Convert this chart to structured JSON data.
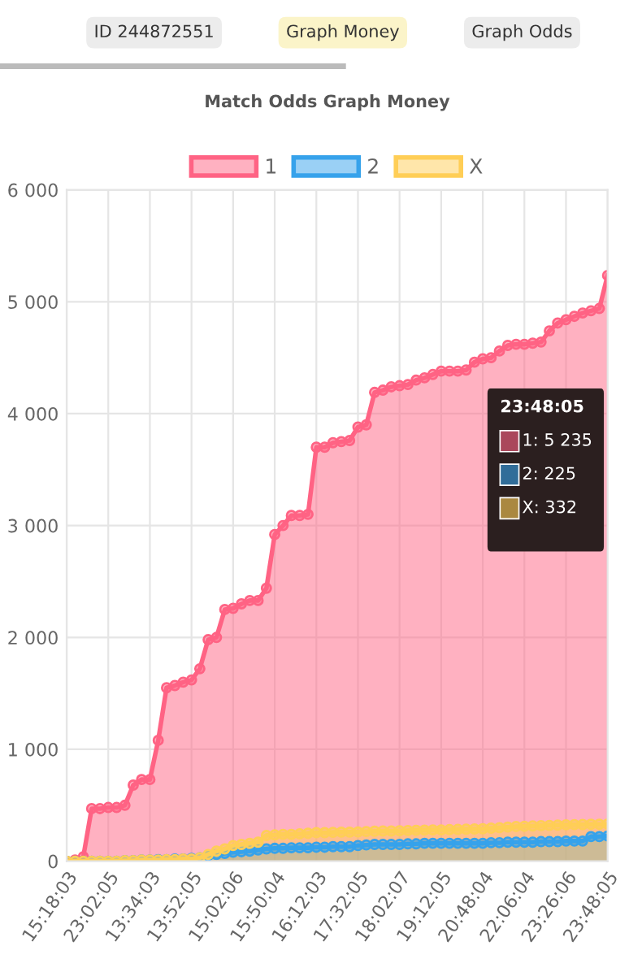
{
  "chart_data": {
    "type": "area",
    "title": "Match Odds Graph Money",
    "categories": [
      "15:18:03",
      null,
      null,
      null,
      null,
      "23:02:05",
      null,
      null,
      null,
      null,
      "13:34:03",
      null,
      null,
      null,
      null,
      "13:52:05",
      null,
      null,
      null,
      null,
      "15:02:06",
      null,
      null,
      null,
      null,
      "15:50:04",
      null,
      null,
      null,
      null,
      "16:12:03",
      null,
      null,
      null,
      null,
      "17:32:05",
      null,
      null,
      null,
      null,
      "18:02:07",
      null,
      null,
      null,
      null,
      "19:12:05",
      null,
      null,
      null,
      null,
      "20:48:04",
      null,
      null,
      null,
      null,
      "22:06:04",
      null,
      null,
      null,
      null,
      "23:26:06",
      null,
      null,
      null,
      null,
      "23:48:05"
    ],
    "series": [
      {
        "name": "1",
        "color": "#ff6384",
        "values": [
          0,
          10,
          40,
          470,
          470,
          480,
          480,
          500,
          680,
          730,
          730,
          1080,
          1550,
          1570,
          1600,
          1620,
          1720,
          1980,
          2000,
          2250,
          2260,
          2300,
          2330,
          2330,
          2440,
          2920,
          3000,
          3090,
          3090,
          3100,
          3700,
          3700,
          3740,
          3750,
          3760,
          3880,
          3900,
          4190,
          4210,
          4240,
          4250,
          4260,
          4300,
          4320,
          4350,
          4380,
          4380,
          4380,
          4390,
          4460,
          4490,
          4500,
          4560,
          4610,
          4620,
          4620,
          4630,
          4640,
          4740,
          4810,
          4840,
          4870,
          4900,
          4920,
          4940,
          5235
        ]
      },
      {
        "name": "2",
        "color": "#36a2eb",
        "values": [
          0,
          0,
          0,
          0,
          0,
          0,
          0,
          5,
          5,
          10,
          10,
          15,
          15,
          20,
          20,
          25,
          30,
          50,
          60,
          70,
          80,
          85,
          90,
          100,
          110,
          115,
          115,
          120,
          120,
          120,
          125,
          125,
          130,
          130,
          130,
          140,
          145,
          150,
          150,
          150,
          150,
          155,
          155,
          160,
          160,
          160,
          160,
          160,
          160,
          160,
          160,
          165,
          165,
          170,
          170,
          170,
          170,
          175,
          175,
          175,
          180,
          180,
          180,
          220,
          220,
          225
        ]
      },
      {
        "name": "X",
        "color": "#ffce56",
        "values": [
          0,
          0,
          0,
          0,
          0,
          0,
          0,
          5,
          5,
          10,
          10,
          10,
          15,
          15,
          20,
          20,
          30,
          60,
          90,
          110,
          140,
          150,
          160,
          170,
          230,
          235,
          240,
          240,
          245,
          250,
          255,
          255,
          258,
          260,
          260,
          262,
          265,
          268,
          270,
          270,
          272,
          274,
          276,
          278,
          280,
          280,
          282,
          284,
          286,
          288,
          290,
          295,
          300,
          305,
          310,
          312,
          315,
          318,
          320,
          322,
          325,
          327,
          328,
          330,
          330,
          332
        ]
      }
    ],
    "ylim": [
      0,
      6000
    ],
    "yticks": [
      0,
      {
        "value": 1000,
        "label": "1 000"
      },
      {
        "value": 2000,
        "label": "2 000"
      },
      {
        "value": 3000,
        "label": "3 000"
      },
      {
        "value": 4000,
        "label": "4 000"
      },
      {
        "value": 5000,
        "label": "5 000"
      },
      {
        "value": 6000,
        "label": "6 000"
      }
    ],
    "grid": true,
    "legend": "top",
    "marker": "circle",
    "annotations": [
      "ID 244872551",
      "Graph Money",
      "Graph Odds",
      "23:48:05",
      "1: 5 235",
      "2: 225",
      "X: 332"
    ]
  }
}
